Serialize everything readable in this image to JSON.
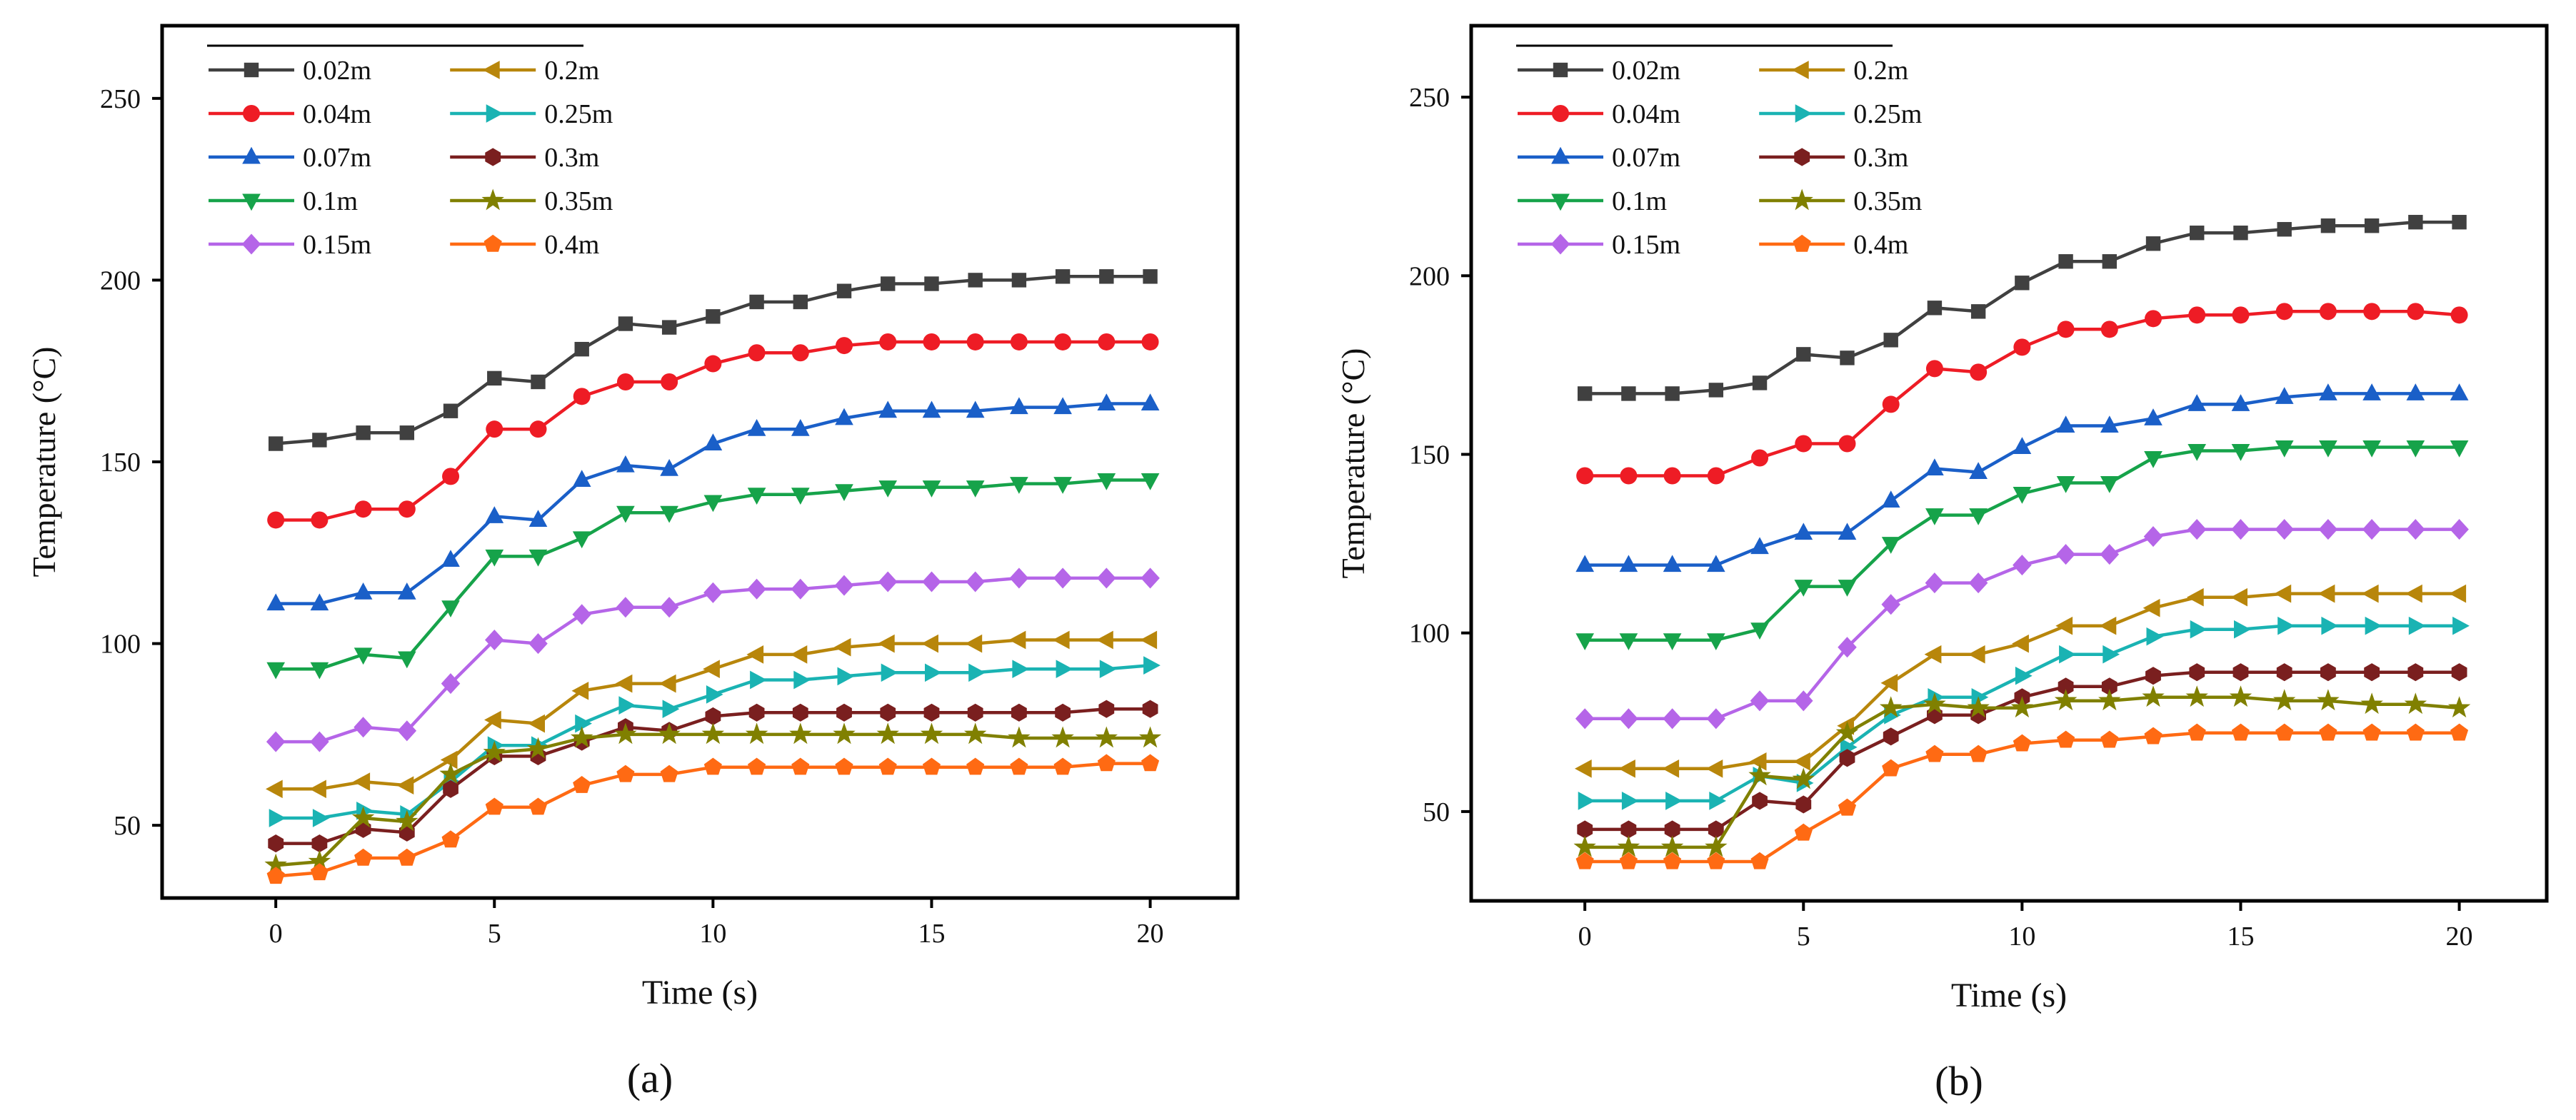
{
  "figure": {
    "panels": [
      "(a)",
      "(b)"
    ]
  },
  "chart_data": [
    {
      "type": "line",
      "panel_label": "(a)",
      "xlabel": "Time (s)",
      "ylabel": "Temperature (°C)",
      "xlim": [
        -2.6,
        22
      ],
      "ylim": [
        30,
        270
      ],
      "xticks": [
        0,
        5,
        10,
        15,
        20
      ],
      "yticks": [
        50,
        100,
        150,
        200,
        250
      ],
      "grid": false,
      "legend_position": "top-left",
      "x": [
        0,
        1,
        2,
        3,
        4,
        5,
        6,
        7,
        8,
        9,
        10,
        11,
        12,
        13,
        14,
        15,
        16,
        17,
        18,
        19,
        20
      ],
      "series": [
        {
          "name": "0.02m",
          "color": "#404040",
          "marker": "square",
          "values": [
            155,
            156,
            158,
            158,
            164,
            173,
            172,
            181,
            188,
            187,
            190,
            194,
            194,
            197,
            199,
            199,
            200,
            200,
            201,
            201,
            201
          ]
        },
        {
          "name": "0.04m",
          "color": "#ee1c25",
          "marker": "circle",
          "values": [
            134,
            134,
            137,
            137,
            146,
            159,
            159,
            168,
            172,
            172,
            177,
            180,
            180,
            182,
            183,
            183,
            183,
            183,
            183,
            183,
            183
          ]
        },
        {
          "name": "0.07m",
          "color": "#1a5fc8",
          "marker": "triangle-up",
          "values": [
            111,
            111,
            114,
            114,
            123,
            135,
            134,
            145,
            149,
            148,
            155,
            159,
            159,
            162,
            164,
            164,
            164,
            165,
            165,
            166,
            166
          ]
        },
        {
          "name": "0.1m",
          "color": "#16a34a",
          "marker": "triangle-down",
          "values": [
            93,
            93,
            97,
            96,
            110,
            124,
            124,
            129,
            136,
            136,
            139,
            141,
            141,
            142,
            143,
            143,
            143,
            144,
            144,
            145,
            145
          ]
        },
        {
          "name": "0.15m",
          "color": "#b565e8",
          "marker": "diamond",
          "values": [
            73,
            73,
            77,
            76,
            89,
            101,
            100,
            108,
            110,
            110,
            114,
            115,
            115,
            116,
            117,
            117,
            117,
            118,
            118,
            118,
            118
          ]
        },
        {
          "name": "0.2m",
          "color": "#b8860b",
          "marker": "triangle-left",
          "values": [
            60,
            60,
            62,
            61,
            68,
            79,
            78,
            87,
            89,
            89,
            93,
            97,
            97,
            99,
            100,
            100,
            100,
            101,
            101,
            101,
            101
          ]
        },
        {
          "name": "0.25m",
          "color": "#1ab3b3",
          "marker": "triangle-right",
          "values": [
            52,
            52,
            54,
            53,
            62,
            72,
            72,
            78,
            83,
            82,
            86,
            90,
            90,
            91,
            92,
            92,
            92,
            93,
            93,
            93,
            94
          ]
        },
        {
          "name": "0.3m",
          "color": "#7a1f1f",
          "marker": "hexagon",
          "values": [
            45,
            45,
            49,
            48,
            60,
            69,
            69,
            73,
            77,
            76,
            80,
            81,
            81,
            81,
            81,
            81,
            81,
            81,
            81,
            82,
            82
          ]
        },
        {
          "name": "0.35m",
          "color": "#808000",
          "marker": "star",
          "values": [
            39,
            40,
            52,
            51,
            64,
            70,
            71,
            74,
            75,
            75,
            75,
            75,
            75,
            75,
            75,
            75,
            75,
            74,
            74,
            74,
            74
          ]
        },
        {
          "name": "0.4m",
          "color": "#ff6a13",
          "marker": "pentagon",
          "values": [
            36,
            37,
            41,
            41,
            46,
            55,
            55,
            61,
            64,
            64,
            66,
            66,
            66,
            66,
            66,
            66,
            66,
            66,
            66,
            67,
            67
          ]
        }
      ]
    },
    {
      "type": "line",
      "panel_label": "(b)",
      "xlabel": "Time (s)",
      "ylabel": "Temperature (°C)",
      "xlim": [
        -2.6,
        22
      ],
      "ylim": [
        25,
        270
      ],
      "xticks": [
        0,
        5,
        10,
        15,
        20
      ],
      "yticks": [
        50,
        100,
        150,
        200,
        250
      ],
      "grid": false,
      "legend_position": "top-left",
      "x": [
        0,
        1,
        2,
        3,
        4,
        5,
        6,
        7,
        8,
        9,
        10,
        11,
        12,
        13,
        14,
        15,
        16,
        17,
        18,
        19,
        20
      ],
      "series": [
        {
          "name": "0.02m",
          "color": "#404040",
          "marker": "square",
          "values": [
            167,
            167,
            167,
            168,
            170,
            178,
            177,
            182,
            191,
            190,
            198,
            204,
            204,
            209,
            212,
            212,
            213,
            214,
            214,
            215,
            215
          ]
        },
        {
          "name": "0.04m",
          "color": "#ee1c25",
          "marker": "circle",
          "values": [
            144,
            144,
            144,
            144,
            149,
            153,
            153,
            164,
            174,
            173,
            180,
            185,
            185,
            188,
            189,
            189,
            190,
            190,
            190,
            190,
            189
          ]
        },
        {
          "name": "0.07m",
          "color": "#1a5fc8",
          "marker": "triangle-up",
          "values": [
            119,
            119,
            119,
            119,
            124,
            128,
            128,
            137,
            146,
            145,
            152,
            158,
            158,
            160,
            164,
            164,
            166,
            167,
            167,
            167,
            167
          ]
        },
        {
          "name": "0.1m",
          "color": "#16a34a",
          "marker": "triangle-down",
          "values": [
            98,
            98,
            98,
            98,
            101,
            113,
            113,
            125,
            133,
            133,
            139,
            142,
            142,
            149,
            151,
            151,
            152,
            152,
            152,
            152,
            152
          ]
        },
        {
          "name": "0.15m",
          "color": "#b565e8",
          "marker": "diamond",
          "values": [
            76,
            76,
            76,
            76,
            81,
            81,
            96,
            108,
            114,
            114,
            119,
            122,
            122,
            127,
            129,
            129,
            129,
            129,
            129,
            129,
            129
          ]
        },
        {
          "name": "0.2m",
          "color": "#b8860b",
          "marker": "triangle-left",
          "values": [
            62,
            62,
            62,
            62,
            64,
            64,
            74,
            86,
            94,
            94,
            97,
            102,
            102,
            107,
            110,
            110,
            111,
            111,
            111,
            111,
            111
          ]
        },
        {
          "name": "0.25m",
          "color": "#1ab3b3",
          "marker": "triangle-right",
          "values": [
            53,
            53,
            53,
            53,
            60,
            58,
            68,
            77,
            82,
            82,
            88,
            94,
            94,
            99,
            101,
            101,
            102,
            102,
            102,
            102,
            102
          ]
        },
        {
          "name": "0.3m",
          "color": "#7a1f1f",
          "marker": "hexagon",
          "values": [
            45,
            45,
            45,
            45,
            53,
            52,
            65,
            71,
            77,
            77,
            82,
            85,
            85,
            88,
            89,
            89,
            89,
            89,
            89,
            89,
            89
          ]
        },
        {
          "name": "0.35m",
          "color": "#808000",
          "marker": "star",
          "values": [
            40,
            40,
            40,
            40,
            60,
            59,
            72,
            79,
            80,
            79,
            79,
            81,
            81,
            82,
            82,
            82,
            81,
            81,
            80,
            80,
            79
          ]
        },
        {
          "name": "0.4m",
          "color": "#ff6a13",
          "marker": "pentagon",
          "values": [
            36,
            36,
            36,
            36,
            36,
            44,
            51,
            62,
            66,
            66,
            69,
            70,
            70,
            71,
            72,
            72,
            72,
            72,
            72,
            72,
            72
          ]
        }
      ]
    }
  ]
}
